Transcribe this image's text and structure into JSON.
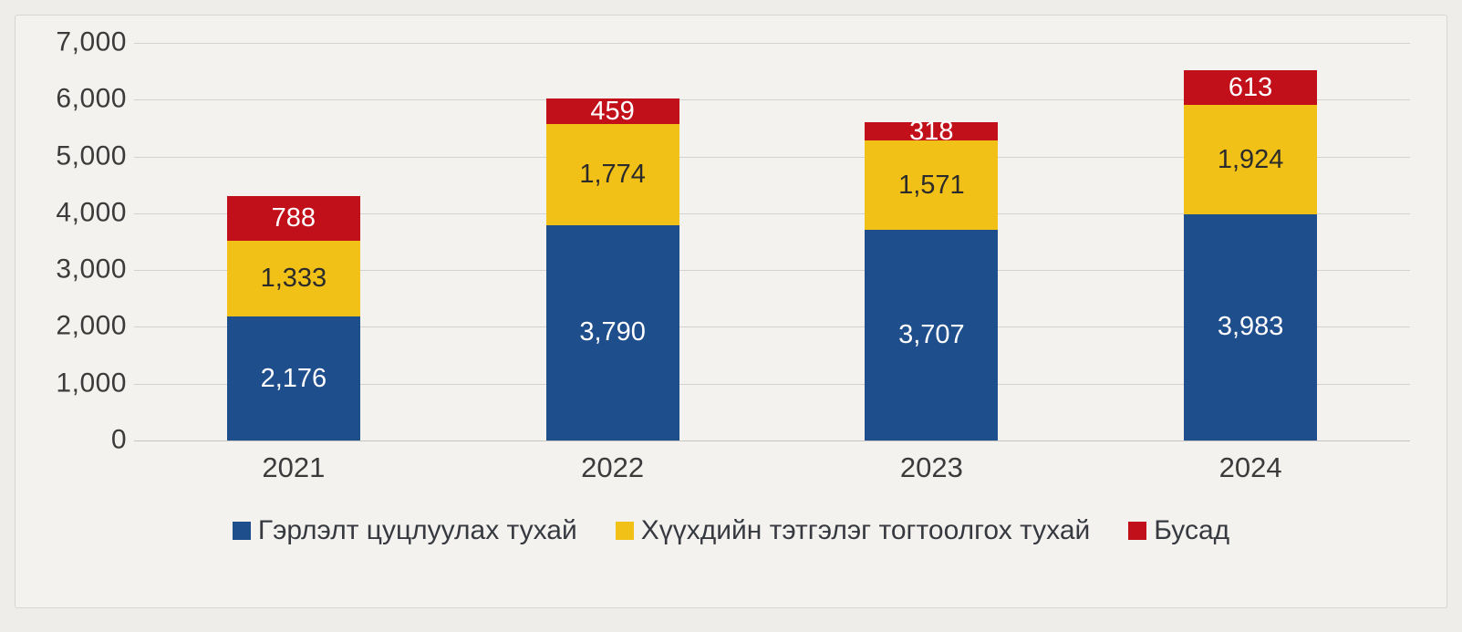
{
  "chart_data": {
    "type": "bar",
    "stacked": true,
    "title": "",
    "xlabel": "",
    "ylabel": "",
    "categories": [
      "2021",
      "2022",
      "2023",
      "2024"
    ],
    "series": [
      {
        "name": "Гэрлэлт цуцлуулах тухай",
        "color": "#1f4e8c",
        "label_color": "#ffffff",
        "values": [
          2176,
          3790,
          3707,
          3983
        ]
      },
      {
        "name": "Хүүхдийн тэтгэлэг тогтоолгох тухай",
        "color": "#f2c117",
        "label_color": "#2b2b2b",
        "values": [
          1333,
          1774,
          1571,
          1924
        ]
      },
      {
        "name": "Бусад",
        "color": "#c2101a",
        "label_color": "#ffffff",
        "values": [
          788,
          459,
          318,
          613
        ]
      }
    ],
    "ylim": [
      0,
      7000
    ],
    "ytick_step": 1000,
    "grid": true,
    "legend_position": "bottom"
  }
}
